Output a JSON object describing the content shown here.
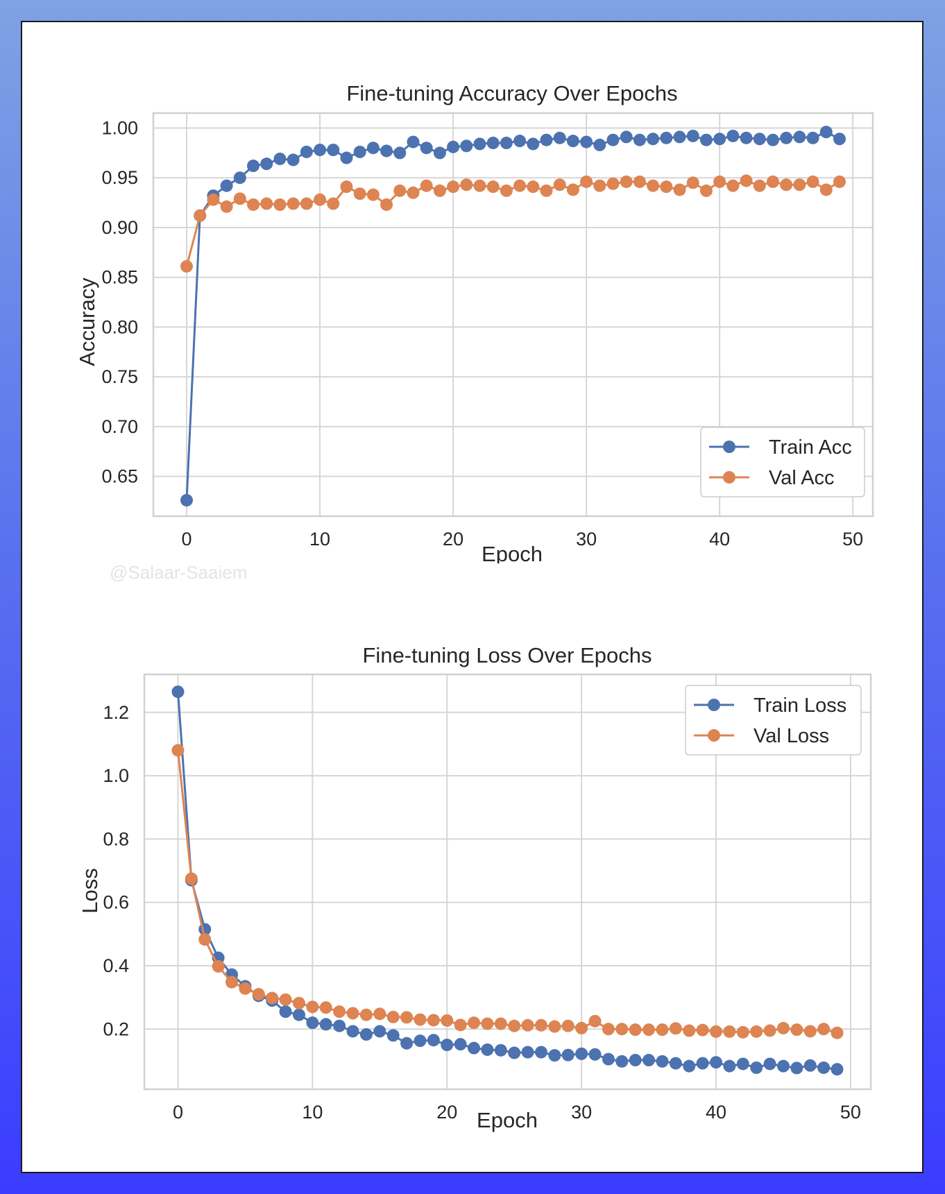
{
  "watermark": "@Salaar-Saaiem",
  "colors": {
    "train": "#4c72b0",
    "val": "#dd8452",
    "grid": "#d6d6d6",
    "frame": "#d0d0d0"
  },
  "chart_data": [
    {
      "type": "line",
      "title": "Fine-tuning Accuracy Over Epochs",
      "xlabel": "Epoch",
      "ylabel": "Accuracy",
      "xlim": [
        -2.5,
        51.5
      ],
      "ylim": [
        0.61,
        1.015
      ],
      "xticks": [
        0,
        10,
        20,
        30,
        40,
        50
      ],
      "xtick_labels": [
        "0",
        "10",
        "20",
        "30",
        "40",
        "50"
      ],
      "yticks": [
        0.65,
        0.7,
        0.75,
        0.8,
        0.85,
        0.9,
        0.95,
        1.0
      ],
      "ytick_labels": [
        "0.65",
        "0.70",
        "0.75",
        "0.80",
        "0.85",
        "0.90",
        "0.95",
        "1.00"
      ],
      "grid": true,
      "legend_position": "bottom-right",
      "x": [
        0,
        1,
        2,
        3,
        4,
        5,
        6,
        7,
        8,
        9,
        10,
        11,
        12,
        13,
        14,
        15,
        16,
        17,
        18,
        19,
        20,
        21,
        22,
        23,
        24,
        25,
        26,
        27,
        28,
        29,
        30,
        31,
        32,
        33,
        34,
        35,
        36,
        37,
        38,
        39,
        40,
        41,
        42,
        43,
        44,
        45,
        46,
        47,
        48,
        49
      ],
      "series": [
        {
          "name": "Train Acc",
          "color_key": "train",
          "values": [
            0.626,
            0.912,
            0.932,
            0.942,
            0.95,
            0.962,
            0.964,
            0.969,
            0.968,
            0.976,
            0.978,
            0.978,
            0.97,
            0.976,
            0.98,
            0.977,
            0.975,
            0.986,
            0.98,
            0.975,
            0.981,
            0.982,
            0.984,
            0.985,
            0.985,
            0.987,
            0.984,
            0.988,
            0.99,
            0.987,
            0.986,
            0.983,
            0.988,
            0.991,
            0.988,
            0.989,
            0.99,
            0.991,
            0.992,
            0.988,
            0.989,
            0.992,
            0.99,
            0.989,
            0.988,
            0.99,
            0.991,
            0.99,
            0.996,
            0.989
          ]
        },
        {
          "name": "Val Acc",
          "color_key": "val",
          "values": [
            0.861,
            0.912,
            0.928,
            0.921,
            0.929,
            0.923,
            0.924,
            0.923,
            0.924,
            0.924,
            0.928,
            0.924,
            0.941,
            0.934,
            0.933,
            0.923,
            0.937,
            0.935,
            0.942,
            0.937,
            0.941,
            0.943,
            0.942,
            0.941,
            0.937,
            0.942,
            0.941,
            0.937,
            0.943,
            0.938,
            0.946,
            0.942,
            0.944,
            0.946,
            0.946,
            0.942,
            0.941,
            0.938,
            0.945,
            0.937,
            0.946,
            0.942,
            0.947,
            0.942,
            0.946,
            0.943,
            0.943,
            0.946,
            0.938,
            0.946
          ]
        }
      ]
    },
    {
      "type": "line",
      "title": "Fine-tuning Loss Over Epochs",
      "xlabel": "Epoch",
      "ylabel": "Loss",
      "xlim": [
        -2.5,
        51.5
      ],
      "ylim": [
        0.01,
        1.32
      ],
      "xticks": [
        0,
        10,
        20,
        30,
        40,
        50
      ],
      "xtick_labels": [
        "0",
        "10",
        "20",
        "30",
        "40",
        "50"
      ],
      "yticks": [
        0.2,
        0.4,
        0.6,
        0.8,
        1.0,
        1.2
      ],
      "ytick_labels": [
        "0.2",
        "0.4",
        "0.6",
        "0.8",
        "1.0",
        "1.2"
      ],
      "grid": true,
      "legend_position": "top-right",
      "x": [
        0,
        1,
        2,
        3,
        4,
        5,
        6,
        7,
        8,
        9,
        10,
        11,
        12,
        13,
        14,
        15,
        16,
        17,
        18,
        19,
        20,
        21,
        22,
        23,
        24,
        25,
        26,
        27,
        28,
        29,
        30,
        31,
        32,
        33,
        34,
        35,
        36,
        37,
        38,
        39,
        40,
        41,
        42,
        43,
        44,
        45,
        46,
        47,
        48,
        49
      ],
      "series": [
        {
          "name": "Train Loss",
          "color_key": "train",
          "values": [
            1.265,
            0.67,
            0.515,
            0.425,
            0.372,
            0.335,
            0.305,
            0.29,
            0.255,
            0.245,
            0.22,
            0.215,
            0.21,
            0.193,
            0.183,
            0.193,
            0.18,
            0.155,
            0.163,
            0.165,
            0.15,
            0.152,
            0.14,
            0.135,
            0.133,
            0.125,
            0.127,
            0.127,
            0.117,
            0.118,
            0.122,
            0.12,
            0.105,
            0.098,
            0.102,
            0.102,
            0.098,
            0.092,
            0.083,
            0.092,
            0.095,
            0.083,
            0.09,
            0.078,
            0.09,
            0.083,
            0.077,
            0.085,
            0.078,
            0.073
          ]
        },
        {
          "name": "Val Loss",
          "color_key": "val",
          "values": [
            1.08,
            0.675,
            0.483,
            0.398,
            0.348,
            0.328,
            0.31,
            0.298,
            0.293,
            0.282,
            0.27,
            0.268,
            0.255,
            0.25,
            0.245,
            0.248,
            0.238,
            0.237,
            0.23,
            0.228,
            0.227,
            0.213,
            0.22,
            0.217,
            0.217,
            0.21,
            0.212,
            0.212,
            0.208,
            0.21,
            0.203,
            0.225,
            0.2,
            0.2,
            0.198,
            0.198,
            0.198,
            0.202,
            0.195,
            0.197,
            0.192,
            0.192,
            0.19,
            0.192,
            0.195,
            0.203,
            0.198,
            0.193,
            0.2,
            0.188
          ]
        }
      ]
    }
  ]
}
